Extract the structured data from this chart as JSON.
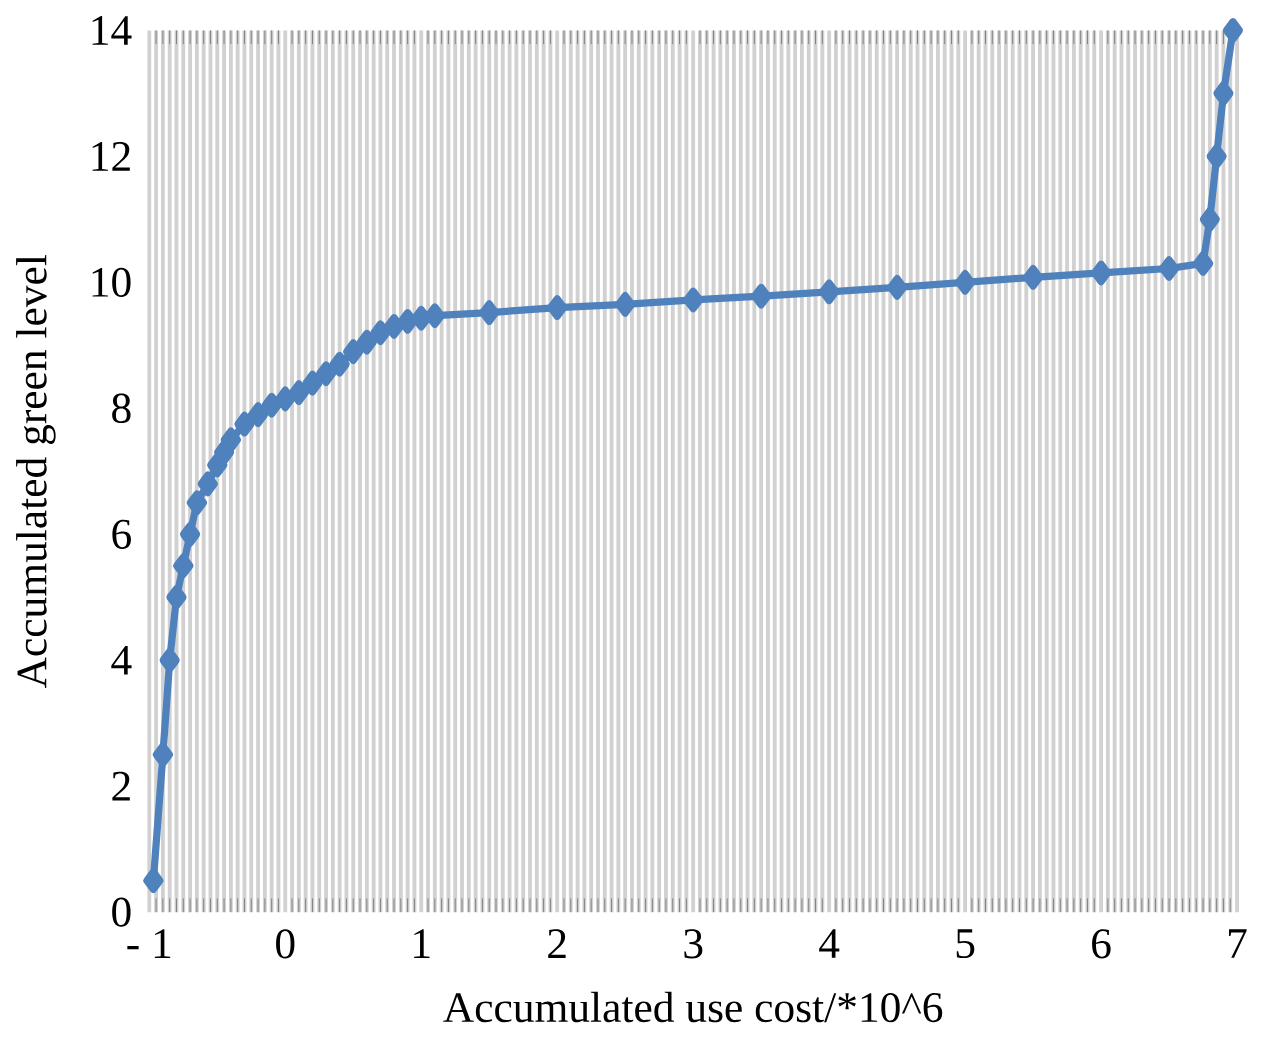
{
  "chart_data": {
    "type": "line",
    "xlabel": "Accumulated use cost/*10^6",
    "ylabel": "Accumulated green level",
    "xlim": [
      -1,
      7
    ],
    "ylim": [
      0,
      14
    ],
    "xticks": [
      {
        "value": -1,
        "label": "- 1"
      },
      0,
      1,
      2,
      3,
      4,
      5,
      6,
      7
    ],
    "yticks": [
      0,
      2,
      4,
      6,
      8,
      10,
      12,
      14
    ],
    "grid": "x",
    "marker": "diamond",
    "line_style": "solid",
    "series": [
      {
        "color": "#4f81bd",
        "x": [
          -0.97,
          -0.9,
          -0.85,
          -0.8,
          -0.75,
          -0.7,
          -0.65,
          -0.57,
          -0.5,
          -0.45,
          -0.4,
          -0.3,
          -0.2,
          -0.1,
          0,
          0.1,
          0.2,
          0.3,
          0.4,
          0.5,
          0.6,
          0.7,
          0.8,
          0.9,
          1.0,
          1.1,
          1.5,
          2.0,
          2.5,
          3.0,
          3.5,
          4.0,
          4.5,
          5.0,
          5.5,
          6.0,
          6.5,
          6.75,
          6.8,
          6.85,
          6.9,
          6.97
        ],
        "values": [
          0.5,
          2.5,
          4,
          5,
          5.5,
          6,
          6.5,
          6.8,
          7.1,
          7.3,
          7.5,
          7.75,
          7.9,
          8.05,
          8.15,
          8.25,
          8.4,
          8.55,
          8.7,
          8.9,
          9.05,
          9.2,
          9.3,
          9.38,
          9.43,
          9.47,
          9.52,
          9.6,
          9.65,
          9.72,
          9.78,
          9.85,
          9.92,
          10.0,
          10.08,
          10.15,
          10.22,
          10.3,
          11,
          12,
          13,
          14
        ]
      }
    ]
  }
}
